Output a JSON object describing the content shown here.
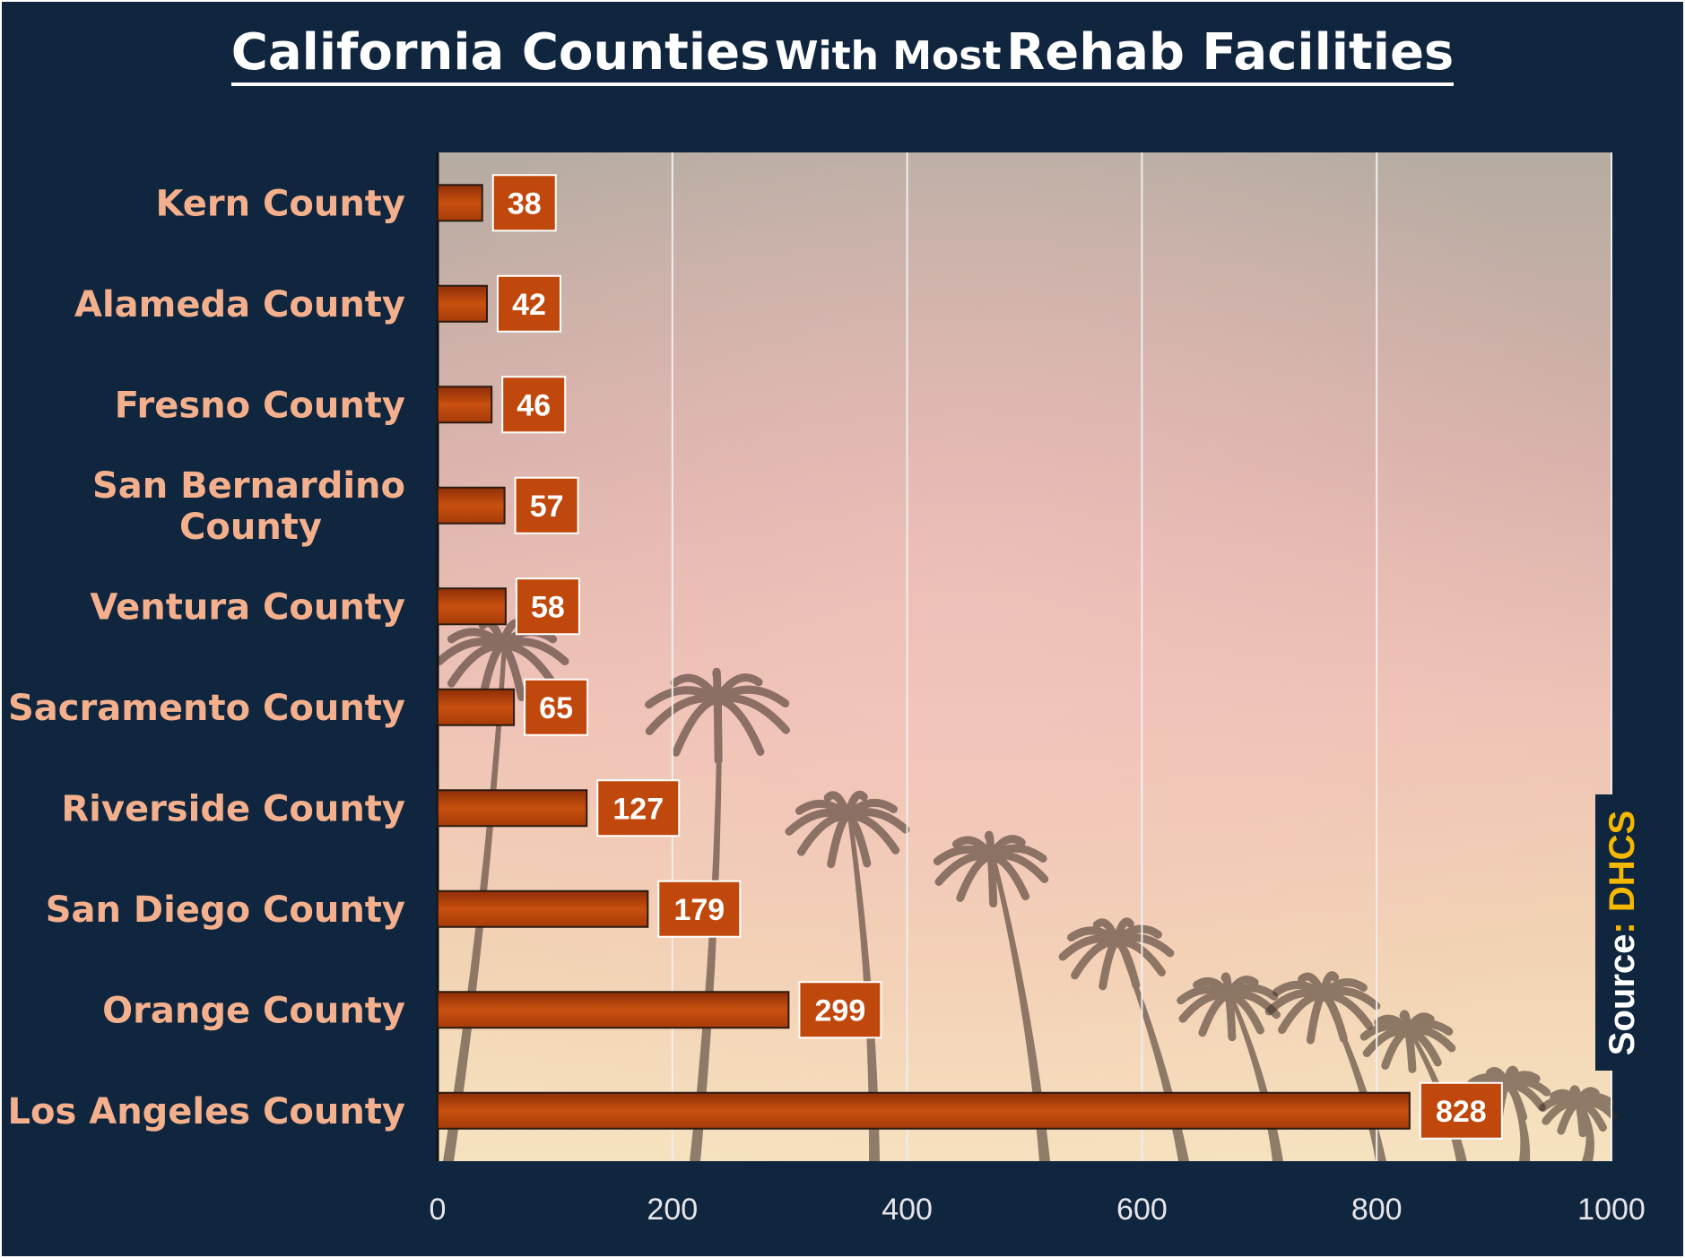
{
  "title": {
    "part1": "California Counties",
    "part2": "With Most",
    "part3": "Rehab Facilities"
  },
  "source": {
    "label": "Source",
    "separator": ":",
    "name": "DHCS"
  },
  "colors": {
    "background": "#10263f",
    "bar": "#c0480c",
    "label": "#f4b08c",
    "source_accent": "#f5b800"
  },
  "chart_data": {
    "type": "bar",
    "orientation": "horizontal",
    "title": "California Counties With Most Rehab Facilities",
    "categories": [
      "Kern County",
      "Alameda County",
      "Fresno County",
      "San Bernardino County",
      "Ventura County",
      "Sacramento County",
      "Riverside County",
      "San Diego County",
      "Orange County",
      "Los Angeles County"
    ],
    "category_lines": [
      [
        "Kern County"
      ],
      [
        "Alameda County"
      ],
      [
        "Fresno County"
      ],
      [
        "San Bernardino",
        "County"
      ],
      [
        "Ventura County"
      ],
      [
        "Sacramento County"
      ],
      [
        "Riverside County"
      ],
      [
        "San Diego County"
      ],
      [
        "Orange County"
      ],
      [
        "Los Angeles County"
      ]
    ],
    "values": [
      38,
      42,
      46,
      57,
      58,
      65,
      127,
      179,
      299,
      828
    ],
    "value_labels": [
      "38",
      "42",
      "46",
      "57",
      "58",
      "65",
      "127",
      "179",
      "299",
      "828"
    ],
    "xlim": [
      0,
      1000
    ],
    "xticks": [
      0,
      200,
      400,
      600,
      800,
      1000
    ],
    "xtick_labels": [
      "0",
      "200",
      "400",
      "600",
      "800",
      "1000"
    ],
    "xlabel": "",
    "ylabel": "",
    "grid": "vertical",
    "data_labels": true
  }
}
